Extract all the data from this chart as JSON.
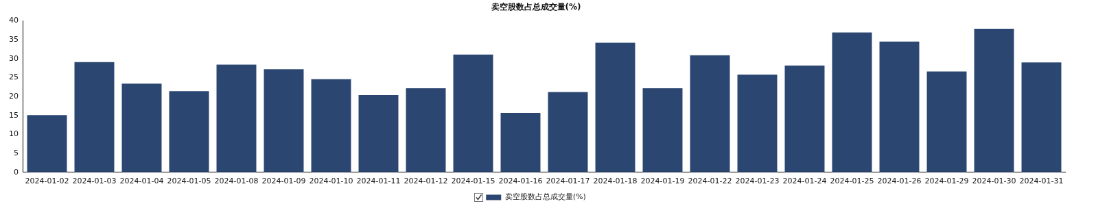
{
  "chart_data": {
    "type": "bar",
    "title": "卖空股数占总成交量(%)",
    "categories": [
      "2024-01-02",
      "2024-01-03",
      "2024-01-04",
      "2024-01-05",
      "2024-01-08",
      "2024-01-09",
      "2024-01-10",
      "2024-01-11",
      "2024-01-12",
      "2024-01-15",
      "2024-01-16",
      "2024-01-17",
      "2024-01-18",
      "2024-01-19",
      "2024-01-22",
      "2024-01-23",
      "2024-01-24",
      "2024-01-25",
      "2024-01-26",
      "2024-01-29",
      "2024-01-30",
      "2024-01-31"
    ],
    "series": [
      {
        "name": "卖空股数占总成交量(%)",
        "color": "#2b4670",
        "values": [
          15.1,
          29.1,
          23.4,
          21.4,
          28.4,
          27.2,
          24.6,
          20.4,
          22.2,
          31.1,
          15.7,
          21.2,
          34.2,
          22.2,
          30.9,
          25.8,
          28.2,
          36.9,
          34.5,
          26.6,
          37.9,
          29.0
        ]
      }
    ],
    "ylim": [
      0,
      40
    ],
    "yticks": [
      0,
      5,
      10,
      15,
      20,
      25,
      30,
      35,
      40
    ],
    "grid": false,
    "legend": "bottom"
  }
}
